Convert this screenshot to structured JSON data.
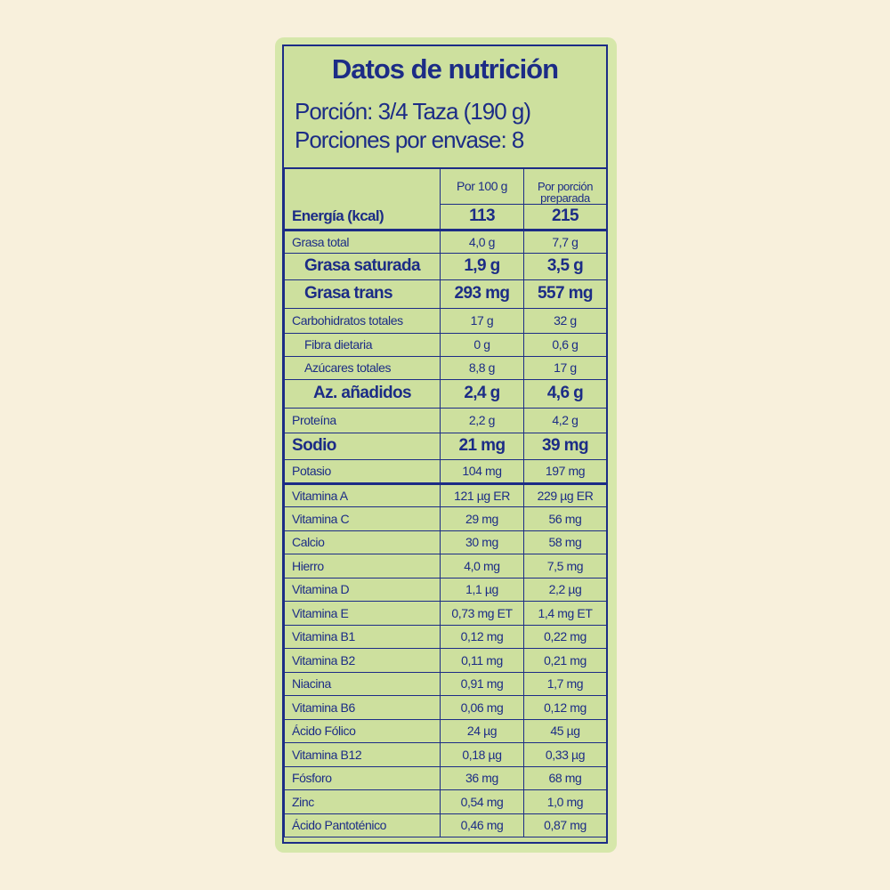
{
  "title": "Datos de nutrición",
  "serving": [
    "Porción: 3/4 Taza (190 g)",
    "Porciones por envase: 8"
  ],
  "columns": [
    "Por 100 g",
    "Por porción preparada"
  ],
  "energy": {
    "label": "Energía (kcal)",
    "per_100g": "113",
    "per_serving": "215"
  },
  "nutrients": [
    [
      "Grasa total",
      "4,0 g",
      "7,7 g"
    ],
    [
      "Grasa saturada",
      "1,9 g",
      "3,5 g"
    ],
    [
      "Grasa trans",
      "293 mg",
      "557 mg"
    ],
    [
      "Carbohidratos totales",
      "17 g",
      "32 g"
    ],
    [
      "Fibra dietaria",
      "0 g",
      "0,6 g"
    ],
    [
      "Azúcares totales",
      "8,8 g",
      "17 g"
    ],
    [
      "Az. añadidos",
      "2,4 g",
      "4,6 g"
    ],
    [
      "Proteína",
      "2,2 g",
      "4,2 g"
    ],
    [
      "Sodio",
      "21 mg",
      "39 mg"
    ],
    [
      "Potasio",
      "104 mg",
      "197 mg"
    ]
  ],
  "vitamins": [
    [
      "Vitamina A",
      "121 µg ER",
      "229 µg ER"
    ],
    [
      "Vitamina C",
      "29 mg",
      "56 mg"
    ],
    [
      "Calcio",
      "30 mg",
      "58 mg"
    ],
    [
      "Hierro",
      "4,0 mg",
      "7,5 mg"
    ],
    [
      "Vitamina D",
      "1,1 µg",
      "2,2 µg"
    ],
    [
      "Vitamina E",
      "0,73 mg ET",
      "1,4 mg ET"
    ],
    [
      "Vitamina B1",
      "0,12 mg",
      "0,22 mg"
    ],
    [
      "Vitamina B2",
      "0,11 mg",
      "0,21 mg"
    ],
    [
      "Niacina",
      "0,91 mg",
      "1,7 mg"
    ],
    [
      "Vitamina B6",
      "0,06 mg",
      "0,12 mg"
    ],
    [
      "Ácido Fólico",
      "24 µg",
      "45 µg"
    ],
    [
      "Vitamina B12",
      "0,18 µg",
      "0,33 µg"
    ],
    [
      "Fósforo",
      "36 mg",
      "68 mg"
    ],
    [
      "Zinc",
      "0,54 mg",
      "1,0 mg"
    ],
    [
      "Ácido Pantoténico",
      "0,46 mg",
      "0,87 mg"
    ]
  ]
}
